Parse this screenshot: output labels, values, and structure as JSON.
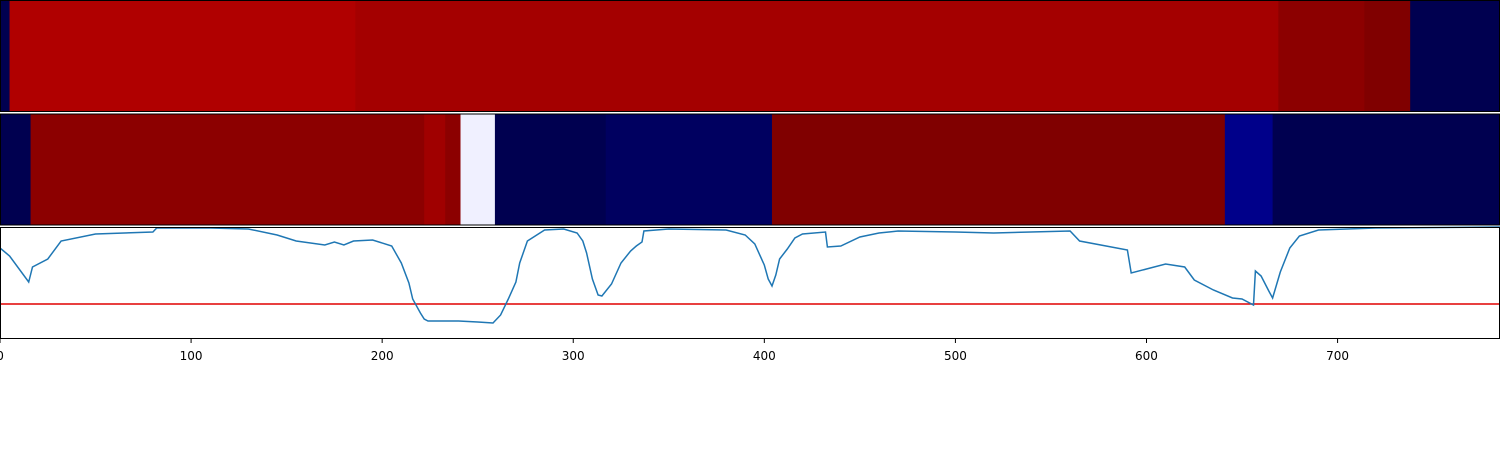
{
  "chart_data": [
    {
      "type": "heatmap",
      "xlim": [
        0,
        785
      ],
      "bins": [
        0,
        5,
        186,
        669,
        714,
        738,
        785
      ],
      "colors": [
        "#000050",
        "#b00000",
        "#a40000",
        "#8c0000",
        "#800000",
        "#000050"
      ]
    },
    {
      "type": "heatmap",
      "xlim": [
        0,
        785
      ],
      "bins": [
        0,
        16,
        222,
        233,
        241,
        259,
        317,
        404,
        641,
        666,
        785
      ],
      "colors": [
        "#000050",
        "#8c0000",
        "#a00000",
        "#8c0000",
        "#f0f0ff",
        "#000050",
        "#000060",
        "#800000",
        "#00008a",
        "#000050"
      ]
    },
    {
      "type": "line",
      "xlim": [
        0,
        785
      ],
      "ylim": [
        0,
        112
      ],
      "xticks": [
        0,
        100,
        200,
        300,
        400,
        500,
        600,
        700
      ],
      "threshold": 35,
      "threshold_color": "#e00000",
      "series": [
        {
          "color": "#1f77b4",
          "x": [
            0,
            5,
            15,
            17,
            25,
            32,
            50,
            80,
            82,
            110,
            130,
            145,
            155,
            170,
            175,
            180,
            185,
            195,
            205,
            210,
            214,
            216,
            220,
            222,
            224,
            240,
            250,
            258,
            262,
            266,
            270,
            272,
            276,
            285,
            295,
            302,
            305,
            307,
            310,
            313,
            315,
            320,
            325,
            330,
            333,
            336,
            337,
            350,
            380,
            390,
            395,
            400,
            402,
            404,
            406,
            408,
            412,
            416,
            420,
            432,
            433,
            440,
            450,
            460,
            470,
            500,
            520,
            560,
            565,
            590,
            592,
            600,
            610,
            620,
            625,
            635,
            645,
            650,
            656,
            657,
            660,
            664,
            666,
            670,
            675,
            680,
            690,
            720,
            785
          ],
          "values": [
            91,
            83,
            57,
            72,
            80,
            98,
            105,
            107,
            111,
            111,
            110,
            104,
            98,
            94,
            97,
            94,
            98,
            99,
            93,
            76,
            56,
            40,
            26,
            20,
            18,
            18,
            17,
            16,
            24,
            40,
            57,
            76,
            98,
            109,
            110,
            106,
            98,
            86,
            60,
            44,
            43,
            55,
            76,
            88,
            93,
            97,
            108,
            110,
            109,
            104,
            95,
            74,
            60,
            53,
            64,
            80,
            90,
            101,
            105,
            107,
            92,
            93,
            102,
            106,
            108,
            107,
            106,
            108,
            98,
            89,
            66,
            70,
            75,
            72,
            59,
            49,
            41,
            40,
            34,
            68,
            63,
            48,
            41,
            67,
            91,
            103,
            109,
            111,
            112
          ]
        }
      ]
    }
  ]
}
